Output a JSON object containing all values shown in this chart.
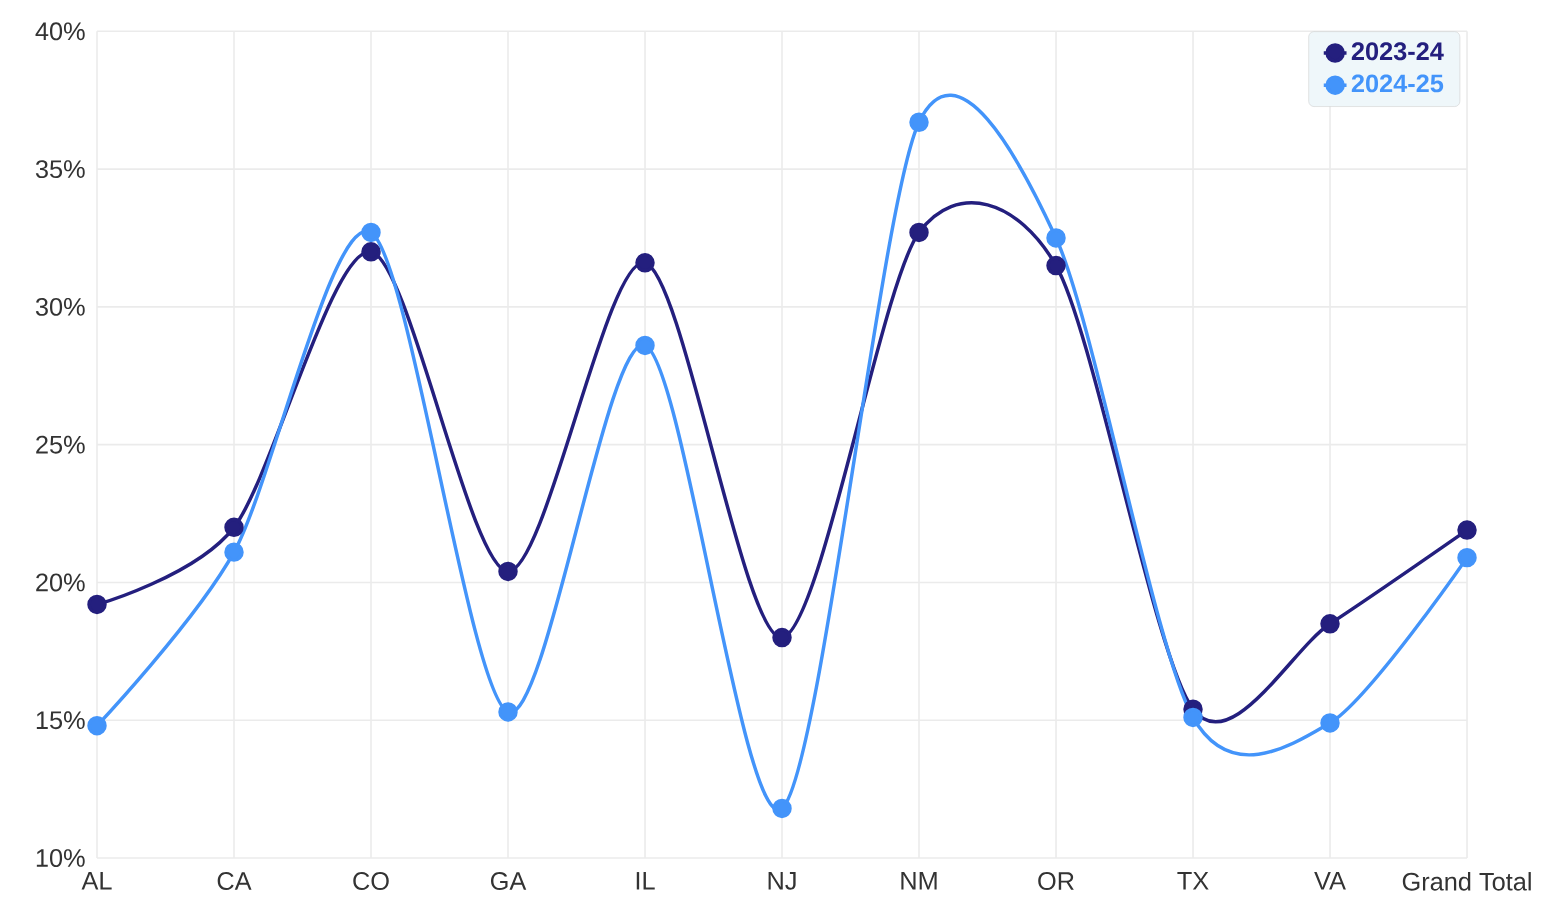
{
  "chart_data": {
    "type": "line",
    "categories": [
      "AL",
      "CA",
      "CO",
      "GA",
      "IL",
      "NJ",
      "NM",
      "OR",
      "TX",
      "VA",
      "Grand Total"
    ],
    "series": [
      {
        "name": "2023-24",
        "color": "#241f7e",
        "values": [
          19.2,
          22.0,
          32.0,
          20.4,
          31.6,
          18.0,
          32.7,
          31.5,
          15.4,
          18.5,
          21.9
        ]
      },
      {
        "name": "2024-25",
        "color": "#4394fa",
        "values": [
          14.8,
          21.1,
          32.7,
          15.3,
          28.6,
          11.8,
          36.7,
          32.5,
          15.1,
          14.9,
          20.9
        ]
      }
    ],
    "ylim": [
      10,
      40
    ],
    "yticks": [
      {
        "value": 10,
        "label": "10%"
      },
      {
        "value": 15,
        "label": "15%"
      },
      {
        "value": 20,
        "label": "20%"
      },
      {
        "value": 25,
        "label": "25%"
      },
      {
        "value": 30,
        "label": "30%"
      },
      {
        "value": 35,
        "label": "35%"
      },
      {
        "value": 40,
        "label": "40%"
      }
    ],
    "grid": true,
    "legend": "top right",
    "marker": "circle",
    "line_style": "solid"
  }
}
